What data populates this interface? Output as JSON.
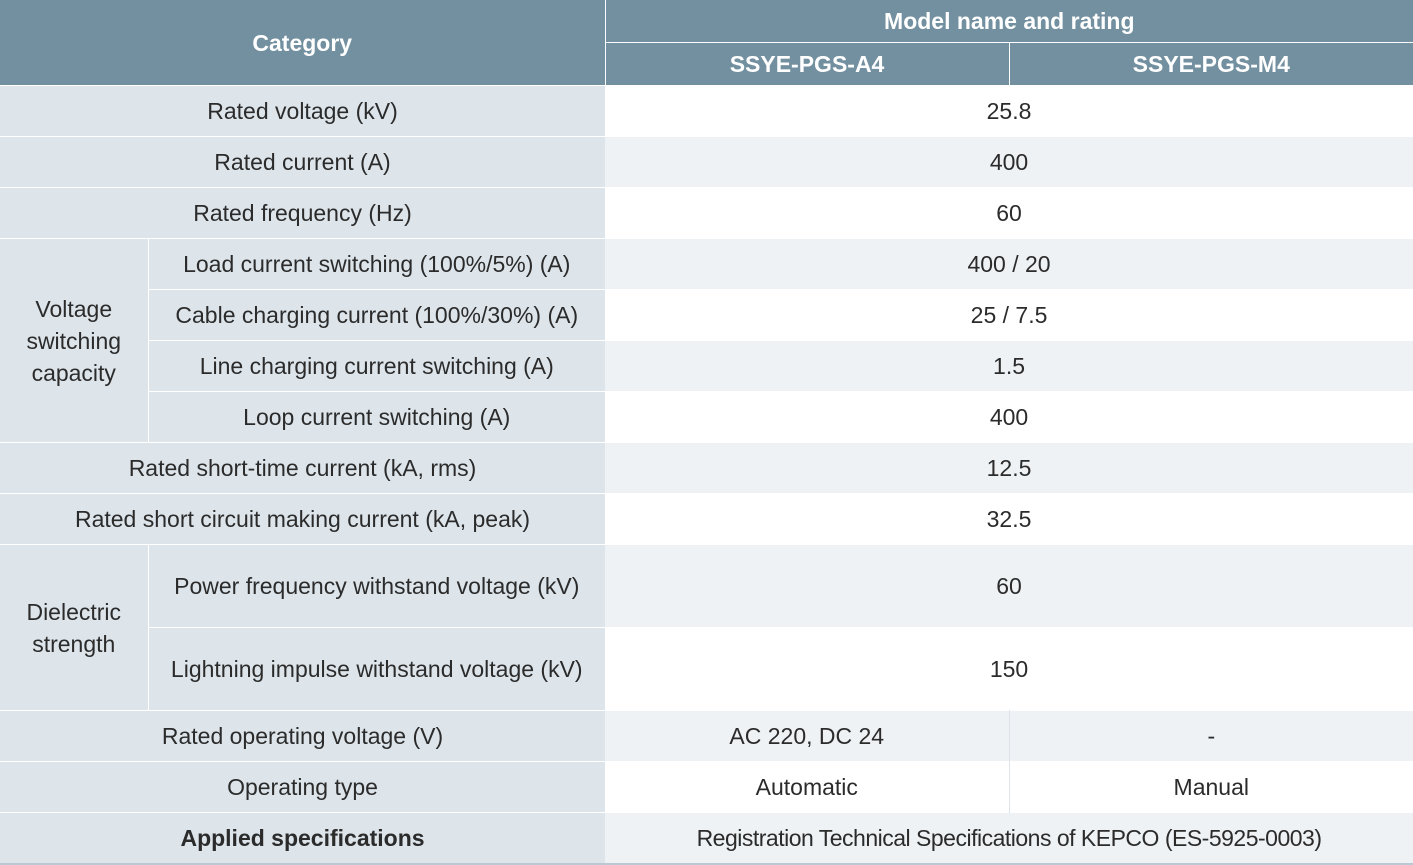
{
  "header": {
    "category": "Category",
    "model_group": "Model name and rating",
    "models": [
      "SSYE-PGS-A4",
      "SSYE-PGS-M4"
    ]
  },
  "rows": {
    "rated_voltage": {
      "label": "Rated voltage (kV)",
      "value": "25.8"
    },
    "rated_current": {
      "label": "Rated current (A)",
      "value": "400"
    },
    "rated_frequency": {
      "label": "Rated frequency (Hz)",
      "value": "60"
    },
    "voltage_switching": {
      "group": "Voltage switching capacity",
      "items": [
        {
          "label": "Load current switching (100%/5%) (A)",
          "value": "400 / 20"
        },
        {
          "label": "Cable charging current (100%/30%) (A)",
          "value": "25 / 7.5"
        },
        {
          "label": "Line charging current switching (A)",
          "value": "1.5"
        },
        {
          "label": "Loop current switching (A)",
          "value": "400"
        }
      ]
    },
    "short_time_current": {
      "label": "Rated short-time current (kA, rms)",
      "value": "12.5"
    },
    "making_current": {
      "label": "Rated short circuit making current (kA, peak)",
      "value": "32.5"
    },
    "dielectric": {
      "group": "Dielectric strength",
      "items": [
        {
          "label": "Power frequency withstand voltage (kV)",
          "value": "60"
        },
        {
          "label": "Lightning impulse withstand voltage (kV)",
          "value": "150"
        }
      ]
    },
    "operating_voltage": {
      "label": "Rated operating voltage (V)",
      "values": [
        "AC 220, DC 24",
        "-"
      ]
    },
    "operating_type": {
      "label": "Operating type",
      "values": [
        "Automatic",
        "Manual"
      ]
    },
    "applied_specs": {
      "label": "Applied specifications",
      "value": "Registration Technical Specifications of KEPCO (ES-5925-0003)"
    }
  },
  "colors": {
    "header_bg": "#7390a0",
    "category_bg": "#dde5eb",
    "row_shade_bg": "#eef2f5",
    "row_plain_bg": "#ffffff"
  }
}
